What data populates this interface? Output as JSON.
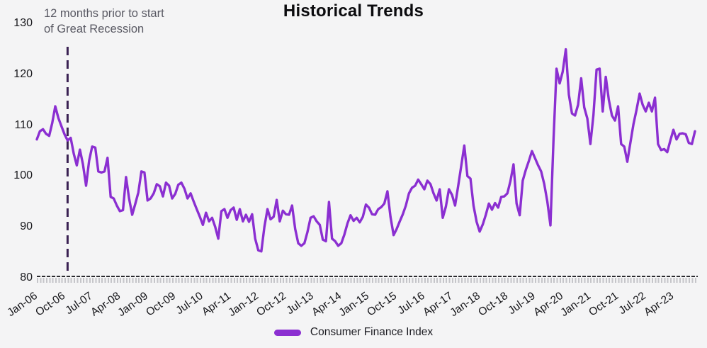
{
  "title": "Historical Trends",
  "annotation": {
    "line1": "12 months prior to start",
    "line2": "of Great Recession",
    "month_index": 10
  },
  "legend": {
    "label": "Consumer Finance Index"
  },
  "colors": {
    "line": "#8B2FD1",
    "annotation_line": "#3A2153",
    "background": "#F4F4F5",
    "axis": "#2A2A2E",
    "minor_tick": "#C5C5C9",
    "text_dark": "#141418",
    "annotation_text": "#595963"
  },
  "y_axis": {
    "ticks": [
      130,
      120,
      110,
      100,
      90,
      80
    ],
    "min": 80,
    "max": 130
  },
  "x_axis": {
    "labels": [
      "Jan-06",
      "Oct-06",
      "Jul-07",
      "Apr-08",
      "Jan-09",
      "Oct-09",
      "Jul-10",
      "Apr-11",
      "Jan-12",
      "Oct-12",
      "Jul-13",
      "Apr-14",
      "Jan-15",
      "Oct-15",
      "Jul-16",
      "Apr-17",
      "Jan-18",
      "Oct-18",
      "Jul-19",
      "Apr-20",
      "Jan-21",
      "Oct-21",
      "Jul-22",
      "Apr-23"
    ],
    "label_every_n_months": 9
  },
  "chart_data": {
    "type": "line",
    "title": "Historical Trends",
    "x_start": "Jan-2006",
    "x_end": "Nov-2023",
    "frequency": "monthly",
    "ylim": [
      80,
      130
    ],
    "grid": false,
    "legend_position": "bottom",
    "annotation": "12 months prior to start of Great Recession (dashed vertical line at Nov-2006)",
    "series": [
      {
        "name": "Consumer Finance Index",
        "values": [
          107.2,
          108.8,
          109.2,
          108.3,
          107.9,
          110.4,
          113.7,
          111.4,
          109.8,
          108.2,
          107.0,
          107.5,
          104.4,
          102.1,
          105.2,
          102.3,
          98.1,
          103.0,
          105.8,
          105.6,
          100.9,
          100.7,
          100.9,
          103.6,
          95.9,
          95.6,
          94.2,
          93.1,
          93.3,
          99.8,
          95.6,
          92.4,
          94.5,
          96.8,
          100.9,
          100.7,
          95.2,
          95.6,
          96.6,
          98.4,
          98.0,
          96.0,
          98.7,
          98.1,
          95.6,
          96.5,
          98.3,
          98.7,
          97.5,
          95.6,
          96.6,
          95.0,
          93.5,
          92.0,
          90.4,
          92.8,
          91.1,
          91.8,
          90.0,
          87.7,
          93.1,
          93.5,
          91.8,
          93.3,
          93.8,
          91.4,
          93.5,
          91.1,
          92.4,
          91.0,
          92.5,
          87.7,
          85.4,
          85.2,
          90.0,
          93.5,
          91.5,
          92.0,
          95.3,
          91.1,
          93.2,
          92.5,
          92.4,
          94.2,
          89.6,
          86.8,
          86.3,
          86.8,
          89.0,
          91.8,
          92.1,
          91.1,
          90.4,
          87.5,
          87.2,
          94.9,
          87.7,
          87.2,
          86.3,
          86.8,
          88.5,
          90.7,
          92.3,
          91.2,
          91.8,
          90.9,
          92.0,
          94.4,
          93.8,
          92.5,
          92.4,
          93.5,
          93.9,
          94.6,
          97.0,
          92.0,
          88.4,
          89.6,
          91.1,
          92.5,
          94.2,
          96.6,
          97.7,
          98.1,
          99.3,
          98.4,
          97.4,
          99.1,
          98.4,
          96.6,
          95.2,
          97.4,
          91.8,
          94.0,
          97.4,
          96.3,
          94.2,
          98.0,
          102.0,
          106.0,
          100.0,
          99.5,
          94.2,
          91.0,
          89.1,
          90.5,
          92.4,
          94.6,
          93.4,
          94.7,
          93.8,
          95.9,
          96.0,
          96.6,
          99.0,
          102.3,
          94.6,
          92.3,
          99.1,
          101.2,
          103.0,
          104.9,
          103.5,
          102.1,
          100.9,
          98.4,
          95.0,
          90.3,
          107.0,
          121.1,
          118.2,
          120.5,
          124.9,
          116.0,
          112.3,
          111.9,
          114.0,
          119.2,
          113.5,
          111.3,
          106.3,
          112.0,
          120.9,
          121.1,
          112.7,
          119.5,
          115.0,
          111.9,
          110.9,
          113.7,
          106.3,
          105.8,
          102.8,
          106.5,
          110.2,
          113.0,
          116.2,
          114.0,
          112.7,
          114.4,
          112.7,
          115.4,
          106.3,
          105.1,
          105.3,
          104.7,
          107.0,
          109.1,
          107.2,
          108.3,
          108.4,
          108.2,
          106.5,
          106.3,
          108.8
        ]
      }
    ]
  }
}
